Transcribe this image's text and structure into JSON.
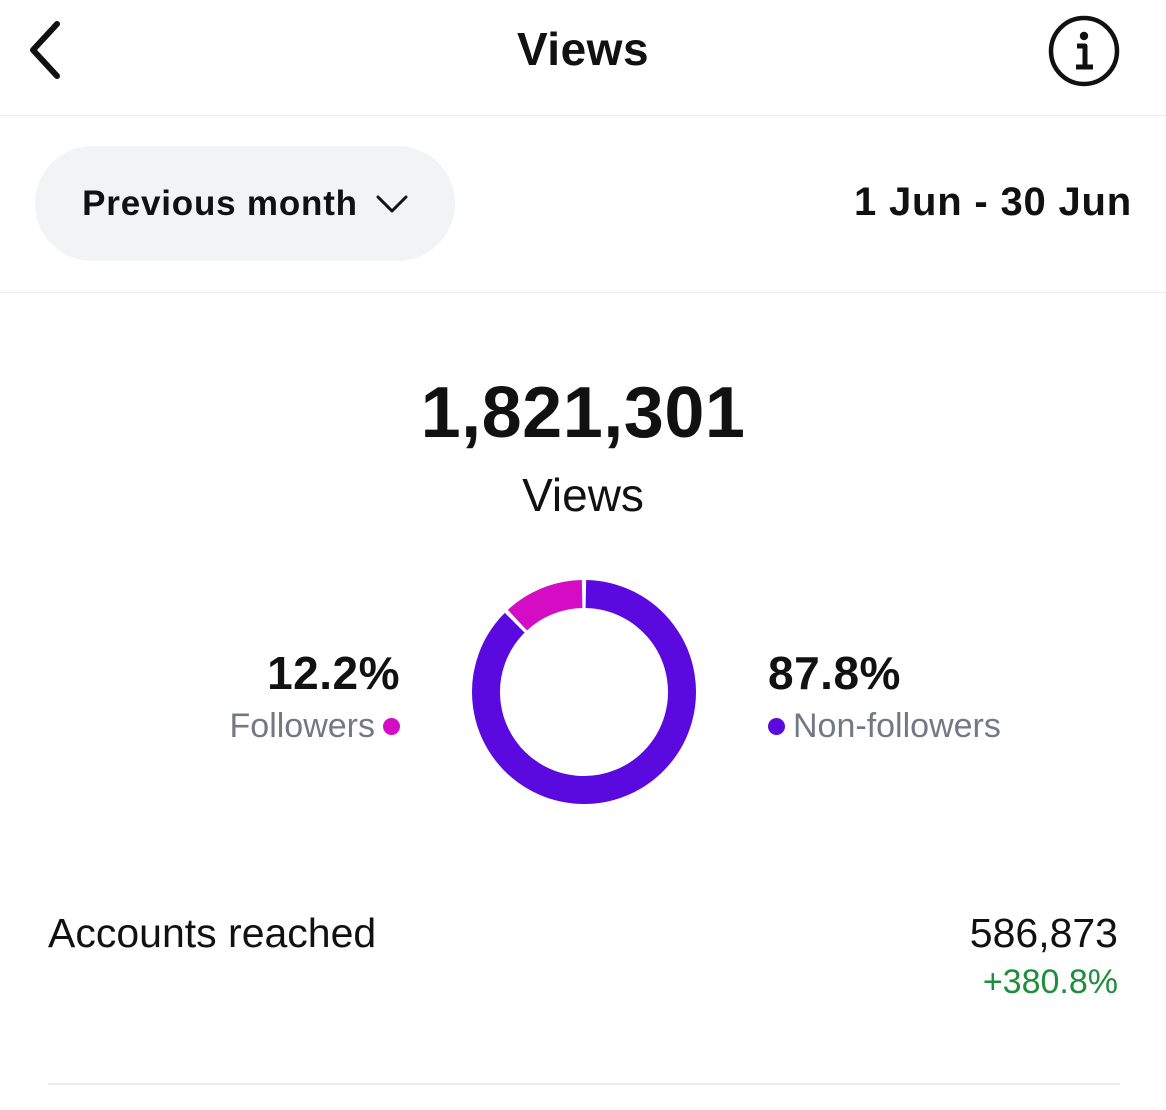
{
  "header": {
    "title": "Views",
    "back_icon": "chevron-left-icon",
    "info_icon": "info-circle-icon"
  },
  "period": {
    "selected": "Previous month",
    "dropdown_icon": "chevron-down-icon",
    "date_range": "1 Jun - 30 Jun"
  },
  "summary": {
    "total": "1,821,301",
    "label": "Views"
  },
  "chart_data": {
    "type": "pie",
    "categories": [
      "Followers",
      "Non-followers"
    ],
    "values": [
      12.2,
      87.8
    ],
    "unit": "%",
    "style": "donut",
    "colors": [
      "#D40CC3",
      "#5A09DE"
    ]
  },
  "segments": {
    "followers": {
      "pct": "12.2%",
      "label": "Followers",
      "color": "#D40CC3"
    },
    "non_followers": {
      "pct": "87.8%",
      "label": "Non-followers",
      "color": "#5A09DE"
    }
  },
  "metrics": {
    "accounts_reached": {
      "label": "Accounts reached",
      "value": "586,873",
      "change": "+380.8%",
      "change_color": "#1E8E3E"
    }
  }
}
